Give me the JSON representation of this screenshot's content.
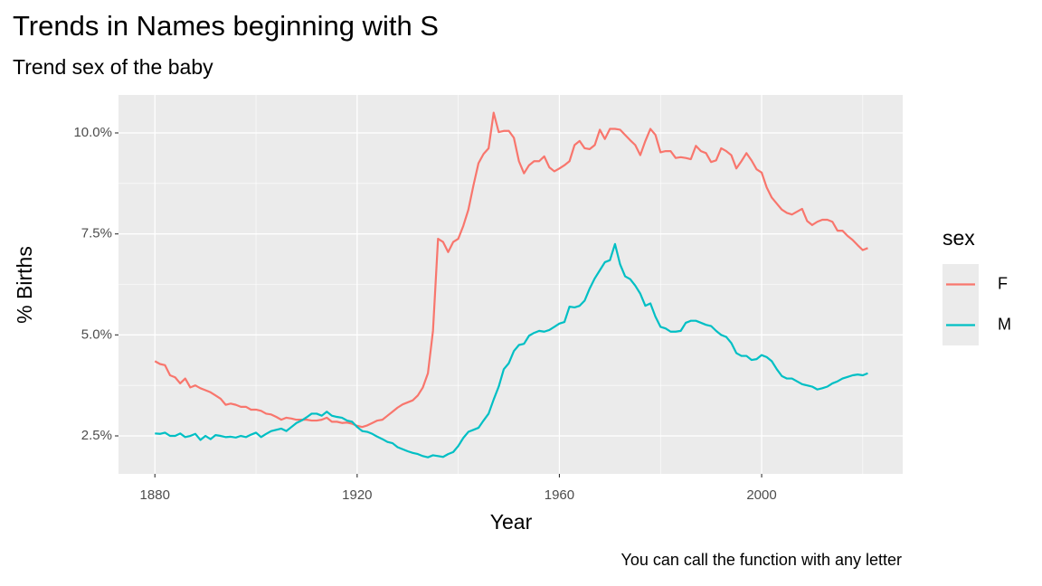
{
  "chart_data": {
    "type": "line",
    "title": "Trends in Names beginning with S",
    "subtitle": "Trend sex of the baby",
    "x_label": "Year",
    "y_label": "% Births",
    "caption": "You can call the function with any letter",
    "legend_title": "sex",
    "legend_position": "right",
    "grid": true,
    "background": "#ebebeb",
    "xlim": [
      1872.8,
      2027.9
    ],
    "xticks": [
      1880,
      1920,
      1960,
      2000
    ],
    "ylim": [
      1.56,
      10.94
    ],
    "yticks": [
      {
        "value": 2.5,
        "label": "2.5%"
      },
      {
        "value": 5.0,
        "label": "5.0%"
      },
      {
        "value": 7.5,
        "label": "7.5%"
      },
      {
        "value": 10.0,
        "label": "10.0%"
      }
    ],
    "x": [
      1880,
      1881,
      1882,
      1883,
      1884,
      1885,
      1886,
      1887,
      1888,
      1889,
      1890,
      1891,
      1892,
      1893,
      1894,
      1895,
      1896,
      1897,
      1898,
      1899,
      1900,
      1901,
      1902,
      1903,
      1904,
      1905,
      1906,
      1907,
      1908,
      1909,
      1910,
      1911,
      1912,
      1913,
      1914,
      1915,
      1916,
      1917,
      1918,
      1919,
      1920,
      1921,
      1922,
      1923,
      1924,
      1925,
      1926,
      1927,
      1928,
      1929,
      1930,
      1931,
      1932,
      1933,
      1934,
      1935,
      1936,
      1937,
      1938,
      1939,
      1940,
      1941,
      1942,
      1943,
      1944,
      1945,
      1946,
      1947,
      1948,
      1949,
      1950,
      1951,
      1952,
      1953,
      1954,
      1955,
      1956,
      1957,
      1958,
      1959,
      1960,
      1961,
      1962,
      1963,
      1964,
      1965,
      1966,
      1967,
      1968,
      1969,
      1970,
      1971,
      1972,
      1973,
      1974,
      1975,
      1976,
      1977,
      1978,
      1979,
      1980,
      1981,
      1982,
      1983,
      1984,
      1985,
      1986,
      1987,
      1988,
      1989,
      1990,
      1991,
      1992,
      1993,
      1994,
      1995,
      1996,
      1997,
      1998,
      1999,
      2000,
      2001,
      2002,
      2003,
      2004,
      2005,
      2006,
      2007,
      2008,
      2009,
      2010,
      2011,
      2012,
      2013,
      2014,
      2015,
      2016,
      2017,
      2018,
      2019,
      2020,
      2021
    ],
    "series": [
      {
        "name": "F",
        "color": "#f8766d",
        "values": [
          4.35,
          4.28,
          4.25,
          4.0,
          3.95,
          3.8,
          3.92,
          3.7,
          3.75,
          3.68,
          3.63,
          3.58,
          3.5,
          3.42,
          3.27,
          3.3,
          3.27,
          3.22,
          3.22,
          3.15,
          3.15,
          3.12,
          3.05,
          3.03,
          2.97,
          2.9,
          2.95,
          2.93,
          2.9,
          2.9,
          2.9,
          2.88,
          2.88,
          2.9,
          2.95,
          2.85,
          2.85,
          2.82,
          2.83,
          2.8,
          2.75,
          2.72,
          2.76,
          2.82,
          2.88,
          2.9,
          3.0,
          3.1,
          3.2,
          3.28,
          3.33,
          3.38,
          3.5,
          3.7,
          4.05,
          5.1,
          7.38,
          7.3,
          7.05,
          7.3,
          7.38,
          7.7,
          8.1,
          8.7,
          9.25,
          9.48,
          9.62,
          10.5,
          10.02,
          10.05,
          10.05,
          9.88,
          9.3,
          9.0,
          9.2,
          9.3,
          9.3,
          9.42,
          9.15,
          9.05,
          9.12,
          9.2,
          9.3,
          9.7,
          9.8,
          9.62,
          9.6,
          9.7,
          10.08,
          9.85,
          10.1,
          10.1,
          10.08,
          9.95,
          9.82,
          9.7,
          9.45,
          9.8,
          10.1,
          9.95,
          9.52,
          9.55,
          9.55,
          9.38,
          9.4,
          9.38,
          9.35,
          9.68,
          9.55,
          9.5,
          9.28,
          9.32,
          9.62,
          9.55,
          9.45,
          9.12,
          9.3,
          9.5,
          9.32,
          9.1,
          9.02,
          8.65,
          8.4,
          8.25,
          8.1,
          8.02,
          7.98,
          8.05,
          8.12,
          7.82,
          7.72,
          7.8,
          7.85,
          7.85,
          7.8,
          7.58,
          7.58,
          7.45,
          7.35,
          7.22,
          7.1,
          7.15
        ]
      },
      {
        "name": "M",
        "color": "#00bfc4",
        "values": [
          2.56,
          2.55,
          2.58,
          2.5,
          2.5,
          2.56,
          2.47,
          2.5,
          2.55,
          2.4,
          2.5,
          2.42,
          2.52,
          2.5,
          2.47,
          2.48,
          2.46,
          2.5,
          2.47,
          2.53,
          2.58,
          2.47,
          2.55,
          2.62,
          2.65,
          2.68,
          2.62,
          2.72,
          2.82,
          2.88,
          2.96,
          3.05,
          3.05,
          3.0,
          3.1,
          3.0,
          2.97,
          2.95,
          2.88,
          2.85,
          2.72,
          2.62,
          2.6,
          2.55,
          2.48,
          2.42,
          2.35,
          2.32,
          2.22,
          2.17,
          2.12,
          2.08,
          2.05,
          2.0,
          1.97,
          2.02,
          2.0,
          1.98,
          2.05,
          2.1,
          2.25,
          2.45,
          2.6,
          2.65,
          2.7,
          2.88,
          3.05,
          3.4,
          3.72,
          4.15,
          4.3,
          4.6,
          4.75,
          4.78,
          4.98,
          5.05,
          5.1,
          5.08,
          5.12,
          5.2,
          5.28,
          5.32,
          5.7,
          5.68,
          5.72,
          5.85,
          6.15,
          6.4,
          6.6,
          6.8,
          6.85,
          7.25,
          6.75,
          6.45,
          6.38,
          6.22,
          6.02,
          5.72,
          5.78,
          5.45,
          5.2,
          5.16,
          5.08,
          5.08,
          5.1,
          5.3,
          5.35,
          5.35,
          5.3,
          5.25,
          5.22,
          5.1,
          5.0,
          4.95,
          4.8,
          4.55,
          4.48,
          4.48,
          4.38,
          4.4,
          4.5,
          4.45,
          4.35,
          4.15,
          3.98,
          3.92,
          3.92,
          3.85,
          3.78,
          3.75,
          3.72,
          3.65,
          3.68,
          3.72,
          3.8,
          3.85,
          3.92,
          3.96,
          4.0,
          4.02,
          4.0,
          4.05
        ]
      }
    ]
  }
}
